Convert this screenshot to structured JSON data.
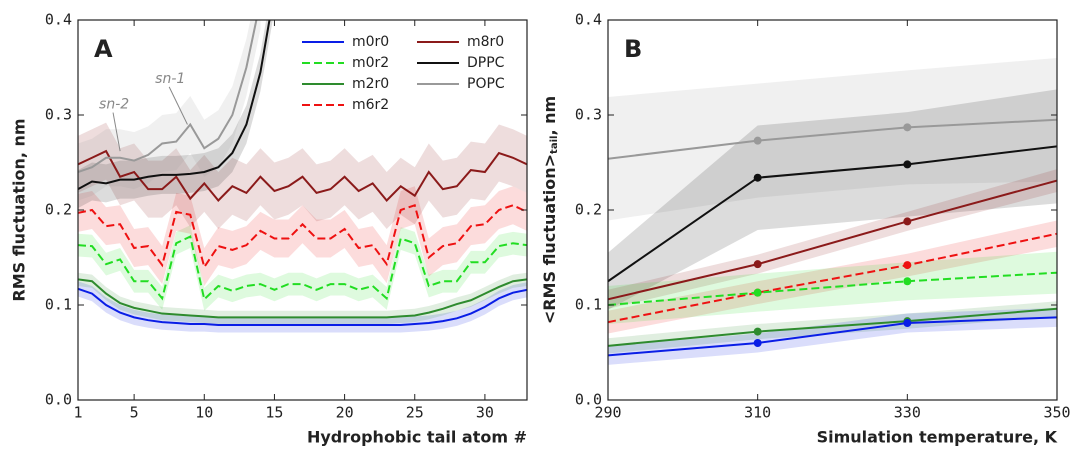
{
  "chart_data": [
    {
      "type": "line",
      "label": "A",
      "xlabel": "Hydrophobic tail atom #",
      "ylabel": "RMS fluctuation, nm",
      "xlim": [
        1,
        33
      ],
      "ylim": [
        0,
        0.4
      ],
      "xticks": [
        1,
        5,
        10,
        15,
        20,
        25,
        30
      ],
      "yticks": [
        {
          "value": 0,
          "label": "0.0"
        },
        0.1,
        0.2,
        0.3,
        0.4
      ],
      "x": [
        1,
        2,
        3,
        4,
        5,
        6,
        7,
        8,
        9,
        10,
        11,
        12,
        13,
        14,
        15,
        16,
        17,
        18,
        19,
        20,
        21,
        22,
        23,
        24,
        25,
        26,
        27,
        28,
        29,
        30,
        31,
        32,
        33
      ],
      "legend": "upper right",
      "annotations": [
        "sn-1",
        "sn-2"
      ],
      "series": [
        {
          "name": "m0r0",
          "color": "#0a1ee6",
          "dash": false,
          "error": 0.008,
          "values": [
            0.117,
            0.112,
            0.1,
            0.092,
            0.087,
            0.084,
            0.082,
            0.081,
            0.08,
            0.08,
            0.079,
            0.079,
            0.079,
            0.079,
            0.079,
            0.079,
            0.079,
            0.079,
            0.079,
            0.079,
            0.079,
            0.079,
            0.079,
            0.079,
            0.08,
            0.081,
            0.083,
            0.086,
            0.091,
            0.098,
            0.107,
            0.113,
            0.116
          ]
        },
        {
          "name": "m0r2",
          "color": "#22dd22",
          "dash": true,
          "error": 0.012,
          "values": [
            0.163,
            0.162,
            0.143,
            0.148,
            0.125,
            0.125,
            0.107,
            0.165,
            0.172,
            0.106,
            0.12,
            0.115,
            0.12,
            0.122,
            0.116,
            0.122,
            0.122,
            0.116,
            0.122,
            0.122,
            0.116,
            0.12,
            0.107,
            0.17,
            0.165,
            0.12,
            0.125,
            0.125,
            0.145,
            0.145,
            0.162,
            0.165,
            0.163
          ]
        },
        {
          "name": "m2r0",
          "color": "#2e8b2e",
          "dash": false,
          "error": 0.007,
          "values": [
            0.127,
            0.125,
            0.112,
            0.102,
            0.097,
            0.094,
            0.091,
            0.09,
            0.089,
            0.088,
            0.087,
            0.087,
            0.087,
            0.087,
            0.087,
            0.087,
            0.087,
            0.087,
            0.087,
            0.087,
            0.087,
            0.087,
            0.087,
            0.088,
            0.089,
            0.092,
            0.096,
            0.101,
            0.105,
            0.112,
            0.119,
            0.125,
            0.127
          ]
        },
        {
          "name": "m6r2",
          "color": "#ee1111",
          "dash": true,
          "error": 0.02,
          "values": [
            0.197,
            0.2,
            0.183,
            0.185,
            0.16,
            0.162,
            0.142,
            0.198,
            0.195,
            0.14,
            0.162,
            0.158,
            0.163,
            0.178,
            0.17,
            0.17,
            0.185,
            0.17,
            0.17,
            0.18,
            0.16,
            0.163,
            0.143,
            0.2,
            0.205,
            0.15,
            0.162,
            0.165,
            0.183,
            0.185,
            0.2,
            0.205,
            0.198
          ]
        },
        {
          "name": "m8r0",
          "color": "#8b1a1a",
          "dash": false,
          "error": 0.03,
          "values": [
            0.248,
            0.255,
            0.262,
            0.235,
            0.24,
            0.222,
            0.222,
            0.235,
            0.212,
            0.228,
            0.21,
            0.225,
            0.218,
            0.235,
            0.22,
            0.225,
            0.235,
            0.218,
            0.222,
            0.235,
            0.22,
            0.228,
            0.21,
            0.225,
            0.215,
            0.24,
            0.222,
            0.225,
            0.242,
            0.24,
            0.26,
            0.255,
            0.248
          ]
        },
        {
          "name": "DPPC",
          "color": "#111111",
          "dash": false,
          "error": 0.02,
          "values": [
            0.222,
            0.23,
            0.228,
            0.232,
            0.232,
            0.235,
            0.237,
            0.237,
            0.238,
            0.24,
            0.245,
            0.26,
            0.29,
            0.345,
            0.43,
            null,
            null,
            null,
            null,
            null,
            null,
            null,
            null,
            null,
            null,
            null,
            null,
            null,
            null,
            null,
            null,
            null,
            null
          ]
        },
        {
          "name": "POPC",
          "color": "#999999",
          "dash": false,
          "error": 0.03,
          "values": [
            0.24,
            0.245,
            0.255,
            0.255,
            0.252,
            0.258,
            0.27,
            0.272,
            0.29,
            0.265,
            0.275,
            0.3,
            0.35,
            0.42,
            null,
            null,
            null,
            null,
            null,
            null,
            null,
            null,
            null,
            null,
            null,
            null,
            null,
            null,
            null,
            null,
            null,
            null,
            null
          ]
        }
      ]
    },
    {
      "type": "line",
      "label": "B",
      "xlabel": "Simulation temperature, K",
      "ylabel": [
        "<RMS fluctuation>",
        "tail",
        ", nm"
      ],
      "xlim": [
        290,
        350
      ],
      "ylim": [
        0,
        0.4
      ],
      "xticks": [
        290,
        310,
        330,
        350
      ],
      "yticks": [
        {
          "value": 0,
          "label": "0.0"
        },
        0.1,
        0.2,
        0.3,
        0.4
      ],
      "x": [
        290,
        310,
        330,
        350
      ],
      "marker_x": [
        310,
        330
      ],
      "series": [
        {
          "name": "POPC",
          "color": "#999999",
          "dash": false,
          "error": [
            0.065,
            0.06,
            0.06,
            0.065
          ],
          "values": [
            0.254,
            0.273,
            0.287,
            0.295
          ]
        },
        {
          "name": "DPPC",
          "color": "#111111",
          "dash": false,
          "error": [
            0.03,
            0.055,
            0.055,
            0.06
          ],
          "values": [
            0.125,
            0.234,
            0.248,
            0.267
          ]
        },
        {
          "name": "m8r0",
          "color": "#8b1a1a",
          "dash": false,
          "error": [
            0.01,
            0.01,
            0.01,
            0.012
          ],
          "values": [
            0.106,
            0.143,
            0.188,
            0.231
          ]
        },
        {
          "name": "m6r2",
          "color": "#ee1111",
          "dash": true,
          "error": [
            0.012,
            0.012,
            0.012,
            0.014
          ],
          "values": [
            0.082,
            0.113,
            0.142,
            0.175
          ]
        },
        {
          "name": "m0r2",
          "color": "#22dd22",
          "dash": true,
          "error": [
            0.02,
            0.02,
            0.02,
            0.022
          ],
          "values": [
            0.1,
            0.113,
            0.125,
            0.134
          ]
        },
        {
          "name": "m2r0",
          "color": "#2e8b2e",
          "dash": false,
          "error": [
            0.008,
            0.008,
            0.008,
            0.008
          ],
          "values": [
            0.057,
            0.072,
            0.083,
            0.096
          ]
        },
        {
          "name": "m0r0",
          "color": "#0a1ee6",
          "dash": false,
          "error": [
            0.01,
            0.01,
            0.01,
            0.01
          ],
          "values": [
            0.047,
            0.06,
            0.081,
            0.087
          ]
        }
      ]
    }
  ]
}
